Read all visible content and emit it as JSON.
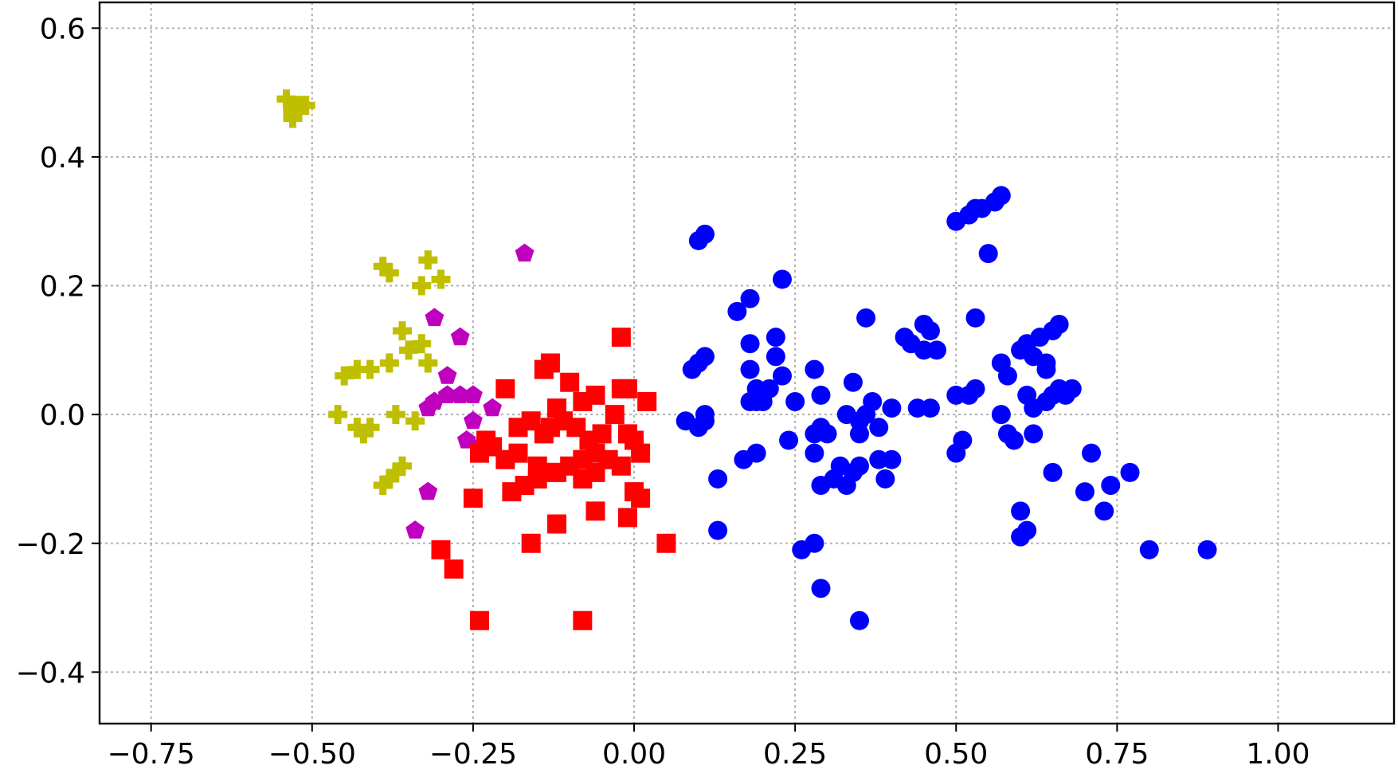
{
  "chart_data": {
    "type": "scatter",
    "title": "",
    "xlabel": "",
    "ylabel": "",
    "xlim": [
      -0.83,
      1.18
    ],
    "ylim": [
      -0.48,
      0.64
    ],
    "xticks": [
      -0.75,
      -0.5,
      -0.25,
      0.0,
      0.25,
      0.5,
      0.75,
      1.0
    ],
    "yticks": [
      -0.4,
      -0.2,
      0.0,
      0.2,
      0.4,
      0.6
    ],
    "xtick_labels": [
      "−0.75",
      "−0.50",
      "−0.25",
      "0.00",
      "0.25",
      "0.50",
      "0.75",
      "1.00"
    ],
    "ytick_labels": [
      "−0.4",
      "−0.2",
      "0.0",
      "0.2",
      "0.4",
      "0.6"
    ],
    "grid": true,
    "legend": "none",
    "series": [
      {
        "marker": "plus",
        "color": "#bfbf00",
        "points": [
          [
            -0.54,
            0.49
          ],
          [
            -0.53,
            0.47
          ],
          [
            -0.52,
            0.48
          ],
          [
            -0.51,
            0.48
          ],
          [
            -0.53,
            0.46
          ],
          [
            -0.39,
            0.23
          ],
          [
            -0.38,
            0.22
          ],
          [
            -0.32,
            0.24
          ],
          [
            -0.33,
            0.2
          ],
          [
            -0.3,
            0.21
          ],
          [
            -0.36,
            0.13
          ],
          [
            -0.35,
            0.1
          ],
          [
            -0.33,
            0.11
          ],
          [
            -0.32,
            0.08
          ],
          [
            -0.38,
            0.08
          ],
          [
            -0.45,
            0.06
          ],
          [
            -0.43,
            0.07
          ],
          [
            -0.41,
            0.07
          ],
          [
            -0.46,
            0.0
          ],
          [
            -0.37,
            0.0
          ],
          [
            -0.34,
            -0.01
          ],
          [
            -0.43,
            -0.02
          ],
          [
            -0.42,
            -0.03
          ],
          [
            -0.41,
            -0.02
          ],
          [
            -0.39,
            -0.11
          ],
          [
            -0.37,
            -0.09
          ],
          [
            -0.36,
            -0.08
          ],
          [
            -0.38,
            -0.1
          ]
        ]
      },
      {
        "marker": "pentagon",
        "color": "#bf00bf",
        "points": [
          [
            -0.17,
            0.25
          ],
          [
            -0.31,
            0.15
          ],
          [
            -0.27,
            0.12
          ],
          [
            -0.29,
            0.06
          ],
          [
            -0.32,
            0.01
          ],
          [
            -0.31,
            0.02
          ],
          [
            -0.29,
            0.03
          ],
          [
            -0.27,
            0.03
          ],
          [
            -0.25,
            0.03
          ],
          [
            -0.25,
            -0.01
          ],
          [
            -0.22,
            0.01
          ],
          [
            -0.26,
            -0.04
          ],
          [
            -0.24,
            -0.05
          ],
          [
            -0.32,
            -0.12
          ],
          [
            -0.34,
            -0.18
          ]
        ]
      },
      {
        "marker": "square",
        "color": "#ff0000",
        "points": [
          [
            -0.02,
            0.12
          ],
          [
            -0.2,
            0.04
          ],
          [
            -0.14,
            0.07
          ],
          [
            -0.13,
            0.08
          ],
          [
            -0.1,
            0.05
          ],
          [
            -0.08,
            0.02
          ],
          [
            -0.06,
            0.03
          ],
          [
            -0.02,
            0.04
          ],
          [
            -0.01,
            0.04
          ],
          [
            0.02,
            0.02
          ],
          [
            -0.12,
            0.01
          ],
          [
            -0.18,
            -0.02
          ],
          [
            -0.16,
            -0.01
          ],
          [
            -0.14,
            -0.03
          ],
          [
            -0.13,
            -0.02
          ],
          [
            -0.11,
            -0.01
          ],
          [
            -0.09,
            -0.02
          ],
          [
            -0.07,
            -0.04
          ],
          [
            -0.05,
            -0.03
          ],
          [
            -0.01,
            -0.03
          ],
          [
            0.0,
            -0.04
          ],
          [
            -0.24,
            -0.06
          ],
          [
            -0.22,
            -0.05
          ],
          [
            -0.2,
            -0.07
          ],
          [
            -0.18,
            -0.06
          ],
          [
            -0.15,
            -0.08
          ],
          [
            -0.12,
            -0.09
          ],
          [
            -0.1,
            -0.08
          ],
          [
            -0.08,
            -0.07
          ],
          [
            -0.06,
            -0.06
          ],
          [
            -0.04,
            -0.07
          ],
          [
            -0.02,
            -0.08
          ],
          [
            0.01,
            -0.06
          ],
          [
            -0.25,
            -0.13
          ],
          [
            -0.19,
            -0.12
          ],
          [
            -0.17,
            -0.11
          ],
          [
            -0.15,
            -0.1
          ],
          [
            -0.13,
            -0.09
          ],
          [
            -0.08,
            -0.1
          ],
          [
            -0.06,
            -0.09
          ],
          [
            0.0,
            -0.12
          ],
          [
            0.01,
            -0.13
          ],
          [
            -0.06,
            -0.15
          ],
          [
            -0.01,
            -0.16
          ],
          [
            -0.12,
            -0.17
          ],
          [
            -0.16,
            -0.2
          ],
          [
            0.05,
            -0.2
          ],
          [
            -0.3,
            -0.21
          ],
          [
            -0.28,
            -0.24
          ],
          [
            -0.24,
            -0.32
          ],
          [
            -0.08,
            -0.32
          ],
          [
            -0.03,
            0.0
          ],
          [
            -0.23,
            -0.04
          ]
        ]
      },
      {
        "marker": "circle",
        "color": "#0000ff",
        "points": [
          [
            0.1,
            0.27
          ],
          [
            0.11,
            0.28
          ],
          [
            0.23,
            0.21
          ],
          [
            0.16,
            0.16
          ],
          [
            0.18,
            0.18
          ],
          [
            0.36,
            0.15
          ],
          [
            0.09,
            0.07
          ],
          [
            0.1,
            0.08
          ],
          [
            0.11,
            0.09
          ],
          [
            0.18,
            0.11
          ],
          [
            0.18,
            0.07
          ],
          [
            0.22,
            0.12
          ],
          [
            0.22,
            0.09
          ],
          [
            0.23,
            0.06
          ],
          [
            0.19,
            0.04
          ],
          [
            0.2,
            0.03
          ],
          [
            0.19,
            0.02
          ],
          [
            0.21,
            0.04
          ],
          [
            0.2,
            0.02
          ],
          [
            0.18,
            0.02
          ],
          [
            0.25,
            0.02
          ],
          [
            0.28,
            0.07
          ],
          [
            0.29,
            0.03
          ],
          [
            0.34,
            0.05
          ],
          [
            0.37,
            0.02
          ],
          [
            0.4,
            0.01
          ],
          [
            0.42,
            0.12
          ],
          [
            0.43,
            0.11
          ],
          [
            0.45,
            0.14
          ],
          [
            0.46,
            0.13
          ],
          [
            0.47,
            0.1
          ],
          [
            0.45,
            0.1
          ],
          [
            0.44,
            0.01
          ],
          [
            0.46,
            0.01
          ],
          [
            0.5,
            0.03
          ],
          [
            0.52,
            0.03
          ],
          [
            0.53,
            0.04
          ],
          [
            0.53,
            0.15
          ],
          [
            0.5,
            0.3
          ],
          [
            0.52,
            0.31
          ],
          [
            0.53,
            0.32
          ],
          [
            0.54,
            0.32
          ],
          [
            0.56,
            0.33
          ],
          [
            0.57,
            0.34
          ],
          [
            0.55,
            0.25
          ],
          [
            0.57,
            0.08
          ],
          [
            0.58,
            0.06
          ],
          [
            0.6,
            0.1
          ],
          [
            0.61,
            0.11
          ],
          [
            0.62,
            0.09
          ],
          [
            0.63,
            0.12
          ],
          [
            0.64,
            0.08
          ],
          [
            0.65,
            0.13
          ],
          [
            0.66,
            0.14
          ],
          [
            0.64,
            0.07
          ],
          [
            0.61,
            0.03
          ],
          [
            0.62,
            0.01
          ],
          [
            0.64,
            0.02
          ],
          [
            0.65,
            0.03
          ],
          [
            0.66,
            0.04
          ],
          [
            0.67,
            0.03
          ],
          [
            0.68,
            0.04
          ],
          [
            0.57,
            0.0
          ],
          [
            0.58,
            -0.03
          ],
          [
            0.59,
            -0.04
          ],
          [
            0.62,
            -0.03
          ],
          [
            0.65,
            -0.09
          ],
          [
            0.7,
            -0.12
          ],
          [
            0.71,
            -0.06
          ],
          [
            0.73,
            -0.15
          ],
          [
            0.74,
            -0.11
          ],
          [
            0.77,
            -0.09
          ],
          [
            0.8,
            -0.21
          ],
          [
            0.89,
            -0.21
          ],
          [
            0.6,
            -0.15
          ],
          [
            0.6,
            -0.19
          ],
          [
            0.61,
            -0.18
          ],
          [
            0.5,
            -0.06
          ],
          [
            0.51,
            -0.04
          ],
          [
            0.08,
            -0.01
          ],
          [
            0.1,
            -0.02
          ],
          [
            0.11,
            0.0
          ],
          [
            0.11,
            -0.01
          ],
          [
            0.17,
            -0.07
          ],
          [
            0.19,
            -0.06
          ],
          [
            0.13,
            -0.1
          ],
          [
            0.13,
            -0.18
          ],
          [
            0.24,
            -0.04
          ],
          [
            0.28,
            -0.03
          ],
          [
            0.29,
            -0.02
          ],
          [
            0.3,
            -0.03
          ],
          [
            0.28,
            -0.06
          ],
          [
            0.29,
            -0.11
          ],
          [
            0.31,
            -0.1
          ],
          [
            0.32,
            -0.08
          ],
          [
            0.33,
            -0.11
          ],
          [
            0.34,
            -0.09
          ],
          [
            0.35,
            -0.08
          ],
          [
            0.35,
            -0.03
          ],
          [
            0.35,
            -0.01
          ],
          [
            0.38,
            -0.02
          ],
          [
            0.38,
            -0.07
          ],
          [
            0.39,
            -0.1
          ],
          [
            0.4,
            -0.07
          ],
          [
            0.26,
            -0.21
          ],
          [
            0.28,
            -0.2
          ],
          [
            0.29,
            -0.27
          ],
          [
            0.35,
            -0.32
          ],
          [
            0.33,
            0.0
          ],
          [
            0.36,
            0.0
          ]
        ]
      }
    ]
  }
}
